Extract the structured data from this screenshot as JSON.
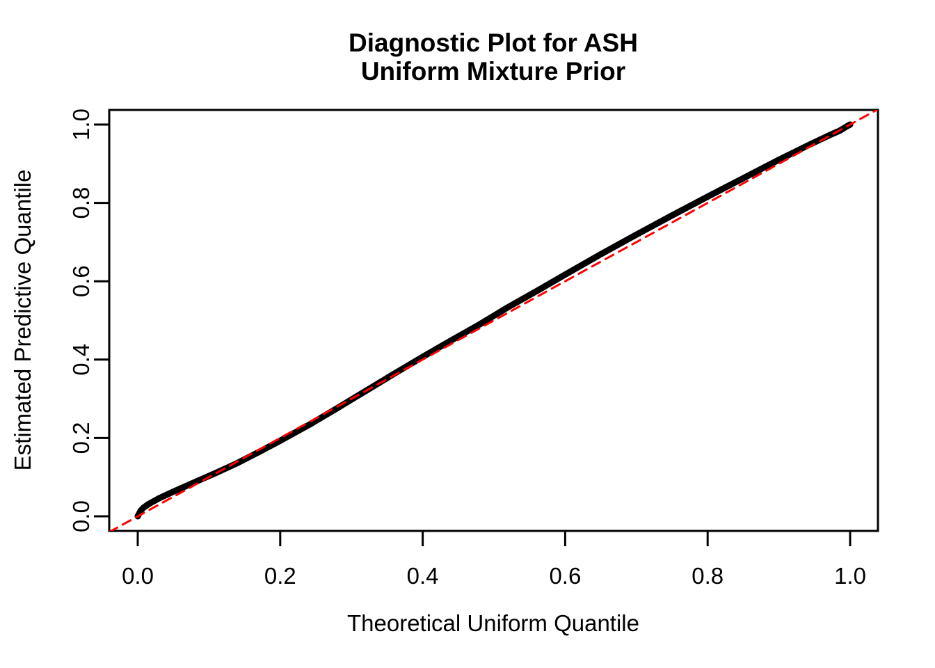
{
  "figure": {
    "background": "#FFFFFF"
  },
  "chart_data": {
    "type": "line",
    "title_lines": [
      "Diagnostic Plot for ASH",
      "Uniform Mixture Prior"
    ],
    "xlabel": "Theoretical Uniform Quantile",
    "ylabel": "Estimated Predictive Quantile",
    "xlim": [
      -0.04,
      1.04
    ],
    "ylim": [
      -0.04,
      1.04
    ],
    "grid": false,
    "legend": null,
    "xticks": [
      "0.0",
      "0.2",
      "0.4",
      "0.6",
      "0.8",
      "1.0"
    ],
    "yticks": [
      "0.0",
      "0.2",
      "0.4",
      "0.6",
      "0.8",
      "1.0"
    ],
    "xtick_values": [
      0.0,
      0.2,
      0.4,
      0.6,
      0.8,
      1.0
    ],
    "ytick_values": [
      0.0,
      0.2,
      0.4,
      0.6,
      0.8,
      1.0
    ],
    "series": [
      {
        "name": "estimated-predictive-quantiles",
        "role": "curve",
        "color": "#000000",
        "style": "solid",
        "x": [
          0.0,
          0.004,
          0.008,
          0.015,
          0.03,
          0.05,
          0.07,
          0.09,
          0.11,
          0.14,
          0.17,
          0.2,
          0.24,
          0.28,
          0.32,
          0.36,
          0.4,
          0.44,
          0.48,
          0.5,
          0.52,
          0.56,
          0.6,
          0.65,
          0.7,
          0.75,
          0.8,
          0.85,
          0.9,
          0.94,
          0.97,
          0.985,
          0.995,
          1.0
        ],
        "y": [
          0.0,
          0.014,
          0.022,
          0.031,
          0.046,
          0.063,
          0.079,
          0.095,
          0.111,
          0.136,
          0.164,
          0.193,
          0.233,
          0.276,
          0.32,
          0.364,
          0.407,
          0.449,
          0.49,
          0.512,
          0.534,
          0.575,
          0.617,
          0.669,
          0.719,
          0.768,
          0.816,
          0.863,
          0.91,
          0.946,
          0.972,
          0.984,
          0.995,
          1.0
        ]
      },
      {
        "name": "reference-diagonal",
        "role": "reference",
        "color": "#FF0000",
        "style": "dashed",
        "x": [
          -0.04,
          1.04
        ],
        "y": [
          -0.04,
          1.04
        ]
      }
    ]
  }
}
